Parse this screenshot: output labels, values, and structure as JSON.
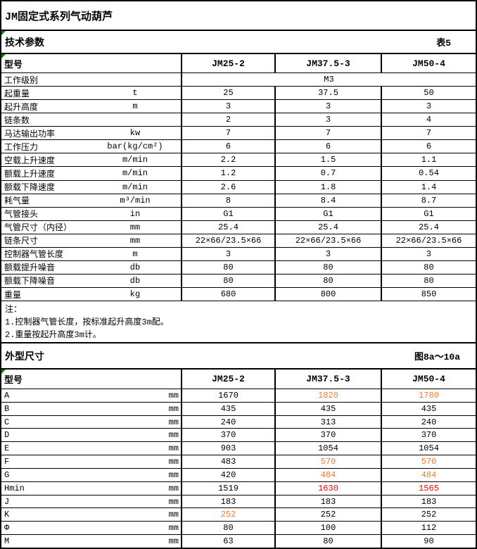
{
  "title": "JM固定式系列气动葫芦",
  "sections": {
    "tech": {
      "title": "技术参数",
      "ref": "表5"
    },
    "dims": {
      "title": "外型尺寸",
      "ref": "图8a～10a"
    }
  },
  "colors": {
    "orange": "#ED7D31",
    "red": "#FF0000",
    "triangle_green": "#008000",
    "border": "#000000"
  },
  "icons": {
    "comment_triangle": "excel-comment-triangle"
  },
  "tech_table": {
    "header_label": "型号",
    "models": [
      "JM25-2",
      "JM37.5-3",
      "JM50-4"
    ],
    "rows": [
      {
        "label": "工作级别",
        "unit": "",
        "merged": true,
        "values": [
          "M3"
        ]
      },
      {
        "label": "起重量",
        "unit": "t",
        "values": [
          "25",
          "37.5",
          "50"
        ]
      },
      {
        "label": "起升高度",
        "unit": "m",
        "values": [
          "3",
          "3",
          "3"
        ]
      },
      {
        "label": "链条数",
        "unit": "",
        "values": [
          "2",
          "3",
          "4"
        ]
      },
      {
        "label": "马达输出功率",
        "unit": "kw",
        "values": [
          "7",
          "7",
          "7"
        ]
      },
      {
        "label": "工作压力",
        "unit": "bar(kg/cm²)",
        "values": [
          "6",
          "6",
          "6"
        ]
      },
      {
        "label": "空载上升速度",
        "unit": "m/min",
        "values": [
          "2.2",
          "1.5",
          "1.1"
        ]
      },
      {
        "label": "额载上升速度",
        "unit": "m/min",
        "values": [
          "1.2",
          "0.7",
          "0.54"
        ]
      },
      {
        "label": "额载下降速度",
        "unit": "m/min",
        "values": [
          "2.6",
          "1.8",
          "1.4"
        ]
      },
      {
        "label": "耗气量",
        "unit": "m³/min",
        "values": [
          "8",
          "8.4",
          "8.7"
        ]
      },
      {
        "label": "气管接头",
        "unit": "in",
        "values": [
          "G1",
          "G1",
          "G1"
        ]
      },
      {
        "label": "气管尺寸（内径）",
        "unit": "mm",
        "values": [
          "25.4",
          "25.4",
          "25.4"
        ]
      },
      {
        "label": "链条尺寸",
        "unit": "mm",
        "values": [
          "22×66/23.5×66",
          "22×66/23.5×66",
          "22×66/23.5×66"
        ]
      },
      {
        "label": "控制器气管长度",
        "unit": "m",
        "values": [
          "3",
          "3",
          "3"
        ]
      },
      {
        "label": "额载提升噪音",
        "unit": "db",
        "values": [
          "80",
          "80",
          "80"
        ]
      },
      {
        "label": "额载下降噪音",
        "unit": "db",
        "values": [
          "80",
          "80",
          "80"
        ]
      },
      {
        "label": "重量",
        "unit": "kg",
        "values": [
          "680",
          "800",
          "850"
        ]
      }
    ]
  },
  "notes": {
    "lines": [
      "注：",
      "1.控制器气管长度，按标准起升高度3m配。",
      "2.重量按起升高度3m计。"
    ]
  },
  "dims_table": {
    "header_label": "型号",
    "models": [
      "JM25-2",
      "JM37.5-3",
      "JM50-4"
    ],
    "rows": [
      {
        "label": "A",
        "unit": "mm",
        "values": [
          "1670",
          "1820",
          "1780"
        ],
        "colors": [
          "",
          "orange",
          "orange"
        ]
      },
      {
        "label": "B",
        "unit": "mm",
        "values": [
          "435",
          "435",
          "435"
        ]
      },
      {
        "label": "C",
        "unit": "mm",
        "values": [
          "240",
          "313",
          "240"
        ]
      },
      {
        "label": "D",
        "unit": "mm",
        "values": [
          "370",
          "370",
          "370"
        ]
      },
      {
        "label": "E",
        "unit": "mm",
        "values": [
          "903",
          "1054",
          "1054"
        ]
      },
      {
        "label": "F",
        "unit": "mm",
        "values": [
          "483",
          "570",
          "570"
        ],
        "colors": [
          "",
          "orange",
          "orange"
        ]
      },
      {
        "label": "G",
        "unit": "mm",
        "values": [
          "420",
          "484",
          "484"
        ],
        "colors": [
          "",
          "orange",
          "orange"
        ]
      },
      {
        "label": "Hmin",
        "unit": "mm",
        "values": [
          "1519",
          "1630",
          "1565"
        ],
        "colors": [
          "",
          "red",
          "red"
        ]
      },
      {
        "label": "J",
        "unit": "mm",
        "values": [
          "183",
          "183",
          "183"
        ]
      },
      {
        "label": "K",
        "unit": "mm",
        "values": [
          "252",
          "252",
          "252"
        ],
        "colors": [
          "orange",
          "",
          ""
        ]
      },
      {
        "label": "Φ",
        "unit": "mm",
        "values": [
          "80",
          "100",
          "112"
        ]
      },
      {
        "label": "M",
        "unit": "mm",
        "values": [
          "63",
          "80",
          "90"
        ]
      }
    ]
  }
}
